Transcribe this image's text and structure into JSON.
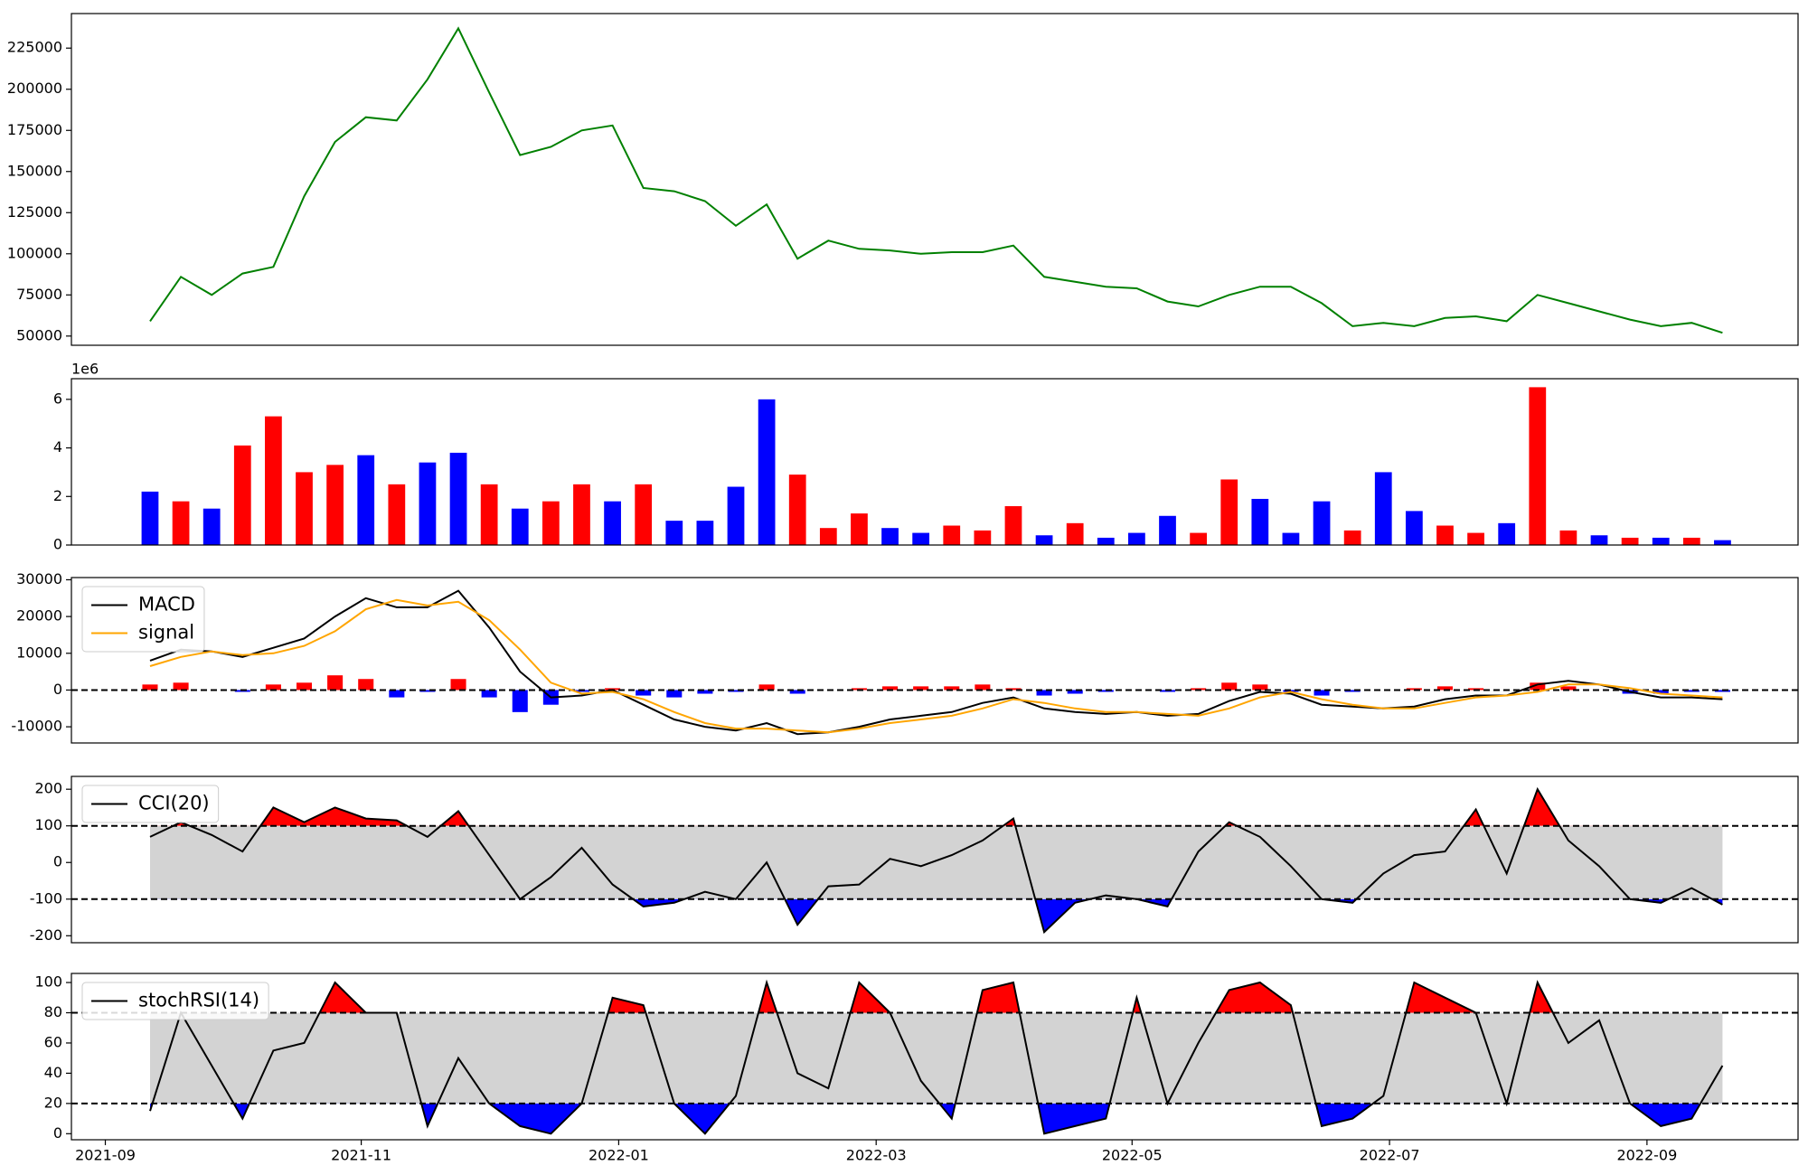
{
  "chart_data": [
    {
      "type": "line",
      "x": [
        2021.696,
        2021.716,
        2021.736,
        2021.756,
        2021.776,
        2021.796,
        2021.816,
        2021.836,
        2021.856,
        2021.876,
        2021.896,
        2021.916,
        2021.936,
        2021.956,
        2021.976,
        2021.996,
        2022.016,
        2022.036,
        2022.056,
        2022.076,
        2022.096,
        2022.116,
        2022.136,
        2022.156,
        2022.176,
        2022.196,
        2022.216,
        2022.236,
        2022.256,
        2022.276,
        2022.296,
        2022.316,
        2022.336,
        2022.356,
        2022.376,
        2022.396,
        2022.416,
        2022.436,
        2022.456,
        2022.476,
        2022.496,
        2022.516,
        2022.536,
        2022.556,
        2022.576,
        2022.596,
        2022.616,
        2022.636,
        2022.656,
        2022.676,
        2022.696,
        2022.716
      ],
      "xlim": [
        2021.645,
        2022.765
      ],
      "series": [
        {
          "color": "#008000",
          "values": [
            59000,
            86000,
            75000,
            88000,
            92000,
            135000,
            168000,
            183000,
            181000,
            206000,
            237000,
            198000,
            160000,
            165000,
            175000,
            178000,
            140000,
            138000,
            132000,
            117000,
            130000,
            97000,
            108000,
            103000,
            102000,
            100000,
            101000,
            101000,
            105000,
            86000,
            83000,
            80000,
            79000,
            71000,
            68000,
            75000,
            80000,
            80000,
            70000,
            56000,
            58000,
            56000,
            61000,
            62000,
            59000,
            75000,
            70000,
            65000,
            60000,
            56000,
            58000,
            52000
          ]
        }
      ],
      "ylim": [
        44400,
        246000
      ],
      "yticks": [
        50000,
        75000,
        100000,
        125000,
        150000,
        175000,
        200000,
        225000
      ]
    },
    {
      "type": "bar",
      "x": [
        2021.696,
        2021.716,
        2021.736,
        2021.756,
        2021.776,
        2021.796,
        2021.816,
        2021.836,
        2021.856,
        2021.876,
        2021.896,
        2021.916,
        2021.936,
        2021.956,
        2021.976,
        2021.996,
        2022.016,
        2022.036,
        2022.056,
        2022.076,
        2022.096,
        2022.116,
        2022.136,
        2022.156,
        2022.176,
        2022.196,
        2022.216,
        2022.236,
        2022.256,
        2022.276,
        2022.296,
        2022.316,
        2022.336,
        2022.356,
        2022.376,
        2022.396,
        2022.416,
        2022.436,
        2022.456,
        2022.476,
        2022.496,
        2022.516,
        2022.536,
        2022.556,
        2022.576,
        2022.596,
        2022.616,
        2022.636,
        2022.656,
        2022.676,
        2022.696,
        2022.716
      ],
      "xlim": [
        2021.645,
        2022.765
      ],
      "values": [
        2.2,
        1.8,
        1.5,
        4.1,
        5.3,
        3.0,
        3.3,
        3.7,
        2.5,
        3.4,
        3.8,
        2.5,
        1.5,
        1.8,
        2.5,
        1.8,
        2.5,
        1.0,
        1.0,
        2.4,
        6.0,
        2.9,
        0.7,
        1.3,
        0.7,
        0.5,
        0.8,
        0.6,
        1.6,
        0.4,
        0.9,
        0.3,
        0.5,
        1.2,
        0.5,
        2.7,
        1.9,
        0.5,
        1.8,
        0.6,
        3.0,
        1.4,
        0.8,
        0.5,
        0.9,
        6.5,
        0.6,
        0.4,
        0.3,
        0.3,
        0.3,
        0.2
      ],
      "colors": [
        "#0000ff",
        "#ff0000",
        "#0000ff",
        "#ff0000",
        "#ff0000",
        "#ff0000",
        "#ff0000",
        "#0000ff",
        "#ff0000",
        "#0000ff",
        "#0000ff",
        "#ff0000",
        "#0000ff",
        "#ff0000",
        "#ff0000",
        "#0000ff",
        "#ff0000",
        "#0000ff",
        "#0000ff",
        "#0000ff",
        "#0000ff",
        "#ff0000",
        "#ff0000",
        "#ff0000",
        "#0000ff",
        "#0000ff",
        "#ff0000",
        "#ff0000",
        "#ff0000",
        "#0000ff",
        "#ff0000",
        "#0000ff",
        "#0000ff",
        "#0000ff",
        "#ff0000",
        "#ff0000",
        "#0000ff",
        "#0000ff",
        "#0000ff",
        "#ff0000",
        "#0000ff",
        "#0000ff",
        "#ff0000",
        "#ff0000",
        "#0000ff",
        "#ff0000",
        "#ff0000",
        "#0000ff",
        "#ff0000",
        "#0000ff",
        "#ff0000",
        "#0000ff"
      ],
      "ylim": [
        0,
        6.85
      ],
      "yticks": [
        0,
        2,
        4,
        6
      ],
      "offset_label": "1e6"
    },
    {
      "type": "macd",
      "x": [
        2021.696,
        2021.716,
        2021.736,
        2021.756,
        2021.776,
        2021.796,
        2021.816,
        2021.836,
        2021.856,
        2021.876,
        2021.896,
        2021.916,
        2021.936,
        2021.956,
        2021.976,
        2021.996,
        2022.016,
        2022.036,
        2022.056,
        2022.076,
        2022.096,
        2022.116,
        2022.136,
        2022.156,
        2022.176,
        2022.196,
        2022.216,
        2022.236,
        2022.256,
        2022.276,
        2022.296,
        2022.316,
        2022.336,
        2022.356,
        2022.376,
        2022.396,
        2022.416,
        2022.436,
        2022.456,
        2022.476,
        2022.496,
        2022.516,
        2022.536,
        2022.556,
        2022.576,
        2022.596,
        2022.616,
        2022.636,
        2022.656,
        2022.676,
        2022.696,
        2022.716
      ],
      "xlim": [
        2021.645,
        2022.765
      ],
      "series": [
        {
          "name": "MACD",
          "color": "#000000",
          "values": [
            8000,
            11000,
            10500,
            9000,
            11500,
            14000,
            20000,
            25000,
            22500,
            22500,
            27000,
            17000,
            5000,
            -2000,
            -1500,
            0,
            -4000,
            -8000,
            -10000,
            -11000,
            -9000,
            -12000,
            -11500,
            -10000,
            -8000,
            -7000,
            -6000,
            -3500,
            -2000,
            -5000,
            -6000,
            -6500,
            -6000,
            -7000,
            -6500,
            -3000,
            -500,
            -1000,
            -4000,
            -4500,
            -5000,
            -4500,
            -2500,
            -1500,
            -1500,
            1500,
            2500,
            1500,
            -500,
            -2000,
            -2000,
            -2500
          ]
        },
        {
          "name": "signal",
          "color": "#ffa500",
          "values": [
            6500,
            9000,
            10500,
            9500,
            10000,
            12000,
            16000,
            22000,
            24500,
            23000,
            24000,
            19000,
            11000,
            2000,
            -1000,
            -500,
            -2500,
            -6000,
            -9000,
            -10500,
            -10500,
            -11000,
            -11500,
            -10500,
            -9000,
            -8000,
            -7000,
            -5000,
            -2500,
            -3500,
            -5000,
            -6000,
            -6000,
            -6500,
            -7000,
            -5000,
            -2000,
            -500,
            -2500,
            -4000,
            -5000,
            -5000,
            -3500,
            -2000,
            -1500,
            -500,
            1500,
            1500,
            500,
            -1000,
            -1500,
            -2000
          ]
        }
      ],
      "histogram": [
        1500,
        2000,
        0,
        -500,
        1500,
        2000,
        4000,
        3000,
        -2000,
        -500,
        3000,
        -2000,
        -6000,
        -4000,
        -500,
        500,
        -1500,
        -2000,
        -1000,
        -500,
        1500,
        -1000,
        0,
        500,
        1000,
        1000,
        1000,
        1500,
        500,
        -1500,
        -1000,
        -500,
        0,
        -500,
        500,
        2000,
        1500,
        -500,
        -1500,
        -500,
        0,
        500,
        1000,
        500,
        0,
        2000,
        1000,
        0,
        -1000,
        -1000,
        -500,
        -500
      ],
      "histogram_colors": [
        "#ff0000",
        "#0000ff"
      ],
      "reference_lines": [
        0
      ],
      "ylim": [
        -14400,
        30600
      ],
      "yticks": [
        -10000,
        0,
        10000,
        20000,
        30000
      ],
      "legend": "upper left"
    },
    {
      "type": "band_line",
      "x": [
        2021.696,
        2021.716,
        2021.736,
        2021.756,
        2021.776,
        2021.796,
        2021.816,
        2021.836,
        2021.856,
        2021.876,
        2021.896,
        2021.916,
        2021.936,
        2021.956,
        2021.976,
        2021.996,
        2022.016,
        2022.036,
        2022.056,
        2022.076,
        2022.096,
        2022.116,
        2022.136,
        2022.156,
        2022.176,
        2022.196,
        2022.216,
        2022.236,
        2022.256,
        2022.276,
        2022.296,
        2022.316,
        2022.336,
        2022.356,
        2022.376,
        2022.396,
        2022.416,
        2022.436,
        2022.456,
        2022.476,
        2022.496,
        2022.516,
        2022.536,
        2022.556,
        2022.576,
        2022.596,
        2022.616,
        2022.636,
        2022.656,
        2022.676,
        2022.696,
        2022.716
      ],
      "xlim": [
        2021.645,
        2022.765
      ],
      "series": [
        {
          "name": "CCI(20)",
          "color": "#000000",
          "values": [
            70,
            110,
            75,
            30,
            150,
            110,
            150,
            120,
            115,
            70,
            140,
            20,
            -100,
            -40,
            40,
            -60,
            -120,
            -110,
            -80,
            -100,
            0,
            -170,
            -65,
            -60,
            10,
            -10,
            20,
            60,
            120,
            -190,
            -110,
            -90,
            -100,
            -120,
            30,
            110,
            70,
            -10,
            -100,
            -110,
            -30,
            20,
            30,
            145,
            -30,
            200,
            60,
            -10,
            -100,
            -110,
            -70,
            -115
          ]
        }
      ],
      "reference_lines": [
        -100,
        100
      ],
      "band_color": "#d3d3d3",
      "upper_fill": "#ff0000",
      "lower_fill": "#0000ff",
      "ylim": [
        -219,
        235
      ],
      "yticks": [
        -200,
        -100,
        0,
        100,
        200
      ],
      "legend": "upper left"
    },
    {
      "type": "band_line",
      "x": [
        2021.696,
        2021.716,
        2021.736,
        2021.756,
        2021.776,
        2021.796,
        2021.816,
        2021.836,
        2021.856,
        2021.876,
        2021.896,
        2021.916,
        2021.936,
        2021.956,
        2021.976,
        2021.996,
        2022.016,
        2022.036,
        2022.056,
        2022.076,
        2022.096,
        2022.116,
        2022.136,
        2022.156,
        2022.176,
        2022.196,
        2022.216,
        2022.236,
        2022.256,
        2022.276,
        2022.296,
        2022.316,
        2022.336,
        2022.356,
        2022.376,
        2022.396,
        2022.416,
        2022.436,
        2022.456,
        2022.476,
        2022.496,
        2022.516,
        2022.536,
        2022.556,
        2022.576,
        2022.596,
        2022.616,
        2022.636,
        2022.656,
        2022.676,
        2022.696,
        2022.716
      ],
      "xlim": [
        2021.645,
        2022.765
      ],
      "series": [
        {
          "name": "stochRSI(14)",
          "color": "#000000",
          "values": [
            15,
            80,
            45,
            10,
            55,
            60,
            100,
            80,
            80,
            5,
            50,
            20,
            5,
            0,
            20,
            90,
            85,
            20,
            0,
            25,
            100,
            40,
            30,
            100,
            80,
            35,
            10,
            95,
            100,
            0,
            5,
            10,
            90,
            20,
            60,
            95,
            100,
            85,
            5,
            10,
            25,
            100,
            90,
            80,
            20,
            100,
            60,
            75,
            20,
            5,
            10,
            45
          ]
        }
      ],
      "reference_lines": [
        20,
        80
      ],
      "band_color": "#d3d3d3",
      "upper_fill": "#ff0000",
      "lower_fill": "#0000ff",
      "ylim": [
        -4,
        106
      ],
      "yticks": [
        0,
        20,
        40,
        60,
        80,
        100
      ],
      "legend": "upper left",
      "xticks": [
        {
          "value": 2021.667,
          "label": "2021-09"
        },
        {
          "value": 2021.833,
          "label": "2021-11"
        },
        {
          "value": 2022.0,
          "label": "2022-01"
        },
        {
          "value": 2022.167,
          "label": "2022-03"
        },
        {
          "value": 2022.333,
          "label": "2022-05"
        },
        {
          "value": 2022.5,
          "label": "2022-07"
        },
        {
          "value": 2022.667,
          "label": "2022-09"
        }
      ]
    }
  ]
}
